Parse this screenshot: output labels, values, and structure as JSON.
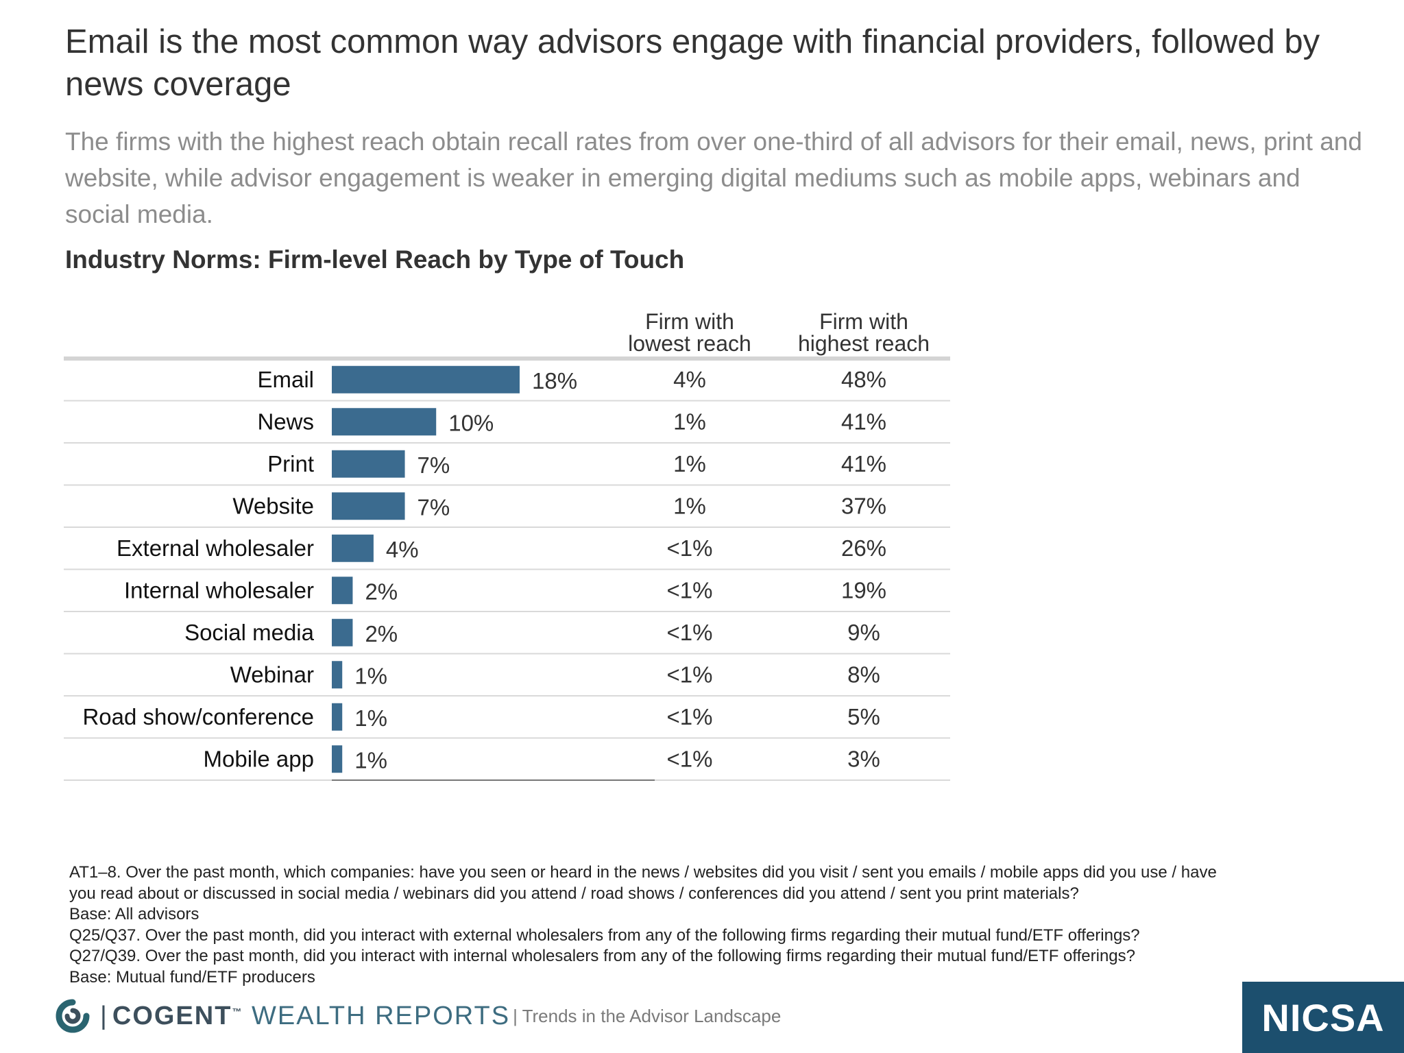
{
  "headline": "Email is the most common way advisors engage with financial providers, followed by news coverage",
  "subhead": "The firms with the highest reach obtain recall rates from over one-third of all advisors for their email, news, print and website, while advisor engagement is weaker in emerging digital mediums such as mobile apps, webinars and social media.",
  "chart_title": "Industry Norms: Firm-level Reach by Type of Touch",
  "chart_data": {
    "type": "bar",
    "orientation": "horizontal",
    "title": "Industry Norms: Firm-level Reach by Type of Touch",
    "categories": [
      "Email",
      "News",
      "Print",
      "Website",
      "External wholesaler",
      "Internal wholesaler",
      "Social media",
      "Webinar",
      "Road show/conference",
      "Mobile app"
    ],
    "values": [
      18,
      10,
      7,
      7,
      4,
      2,
      2,
      1,
      1,
      1
    ],
    "value_labels": [
      "18%",
      "10%",
      "7%",
      "7%",
      "4%",
      "2%",
      "2%",
      "1%",
      "1%",
      "1%"
    ],
    "bar_color": "#3b6b8f",
    "xlim": [
      0,
      30
    ],
    "columns": [
      {
        "header_line1": "Firm with",
        "header_line2": "lowest reach",
        "values": [
          "4%",
          "1%",
          "1%",
          "1%",
          "<1%",
          "<1%",
          "<1%",
          "<1%",
          "<1%",
          "<1%"
        ]
      },
      {
        "header_line1": "Firm with",
        "header_line2": "highest reach",
        "values": [
          "48%",
          "41%",
          "41%",
          "37%",
          "26%",
          "19%",
          "9%",
          "8%",
          "5%",
          "3%"
        ]
      }
    ]
  },
  "footnotes": [
    "AT1–8. Over the past month, which companies: have you seen or heard in the news / websites did you visit / sent you emails / mobile apps did you use / have",
    "you read about or discussed in social media / webinars did you attend / road shows / conferences did you attend / sent you print materials?",
    "Base: All advisors",
    "Q25/Q37. Over the past month, did you interact with external wholesalers from any of the following firms regarding their mutual fund/ETF offerings?",
    "Q27/Q39. Over the past month, did you interact with internal wholesalers from any of the following firms regarding their mutual fund/ETF offerings?",
    "Base: Mutual fund/ETF producers"
  ],
  "footer": {
    "brand_name": "COGENT",
    "brand_tm": "™",
    "brand_suffix": "WEALTH REPORTS",
    "separator": "|",
    "tagline": "| Trends in the Advisor Landscape",
    "partner_logo": "NICSA"
  },
  "colors": {
    "brand_teal": "#2a6470",
    "brand_dark": "#3d4f5c",
    "nicsa_blue": "#1c4f6e"
  },
  "icons": {
    "brand_logo": "cogent-swirl-icon"
  }
}
